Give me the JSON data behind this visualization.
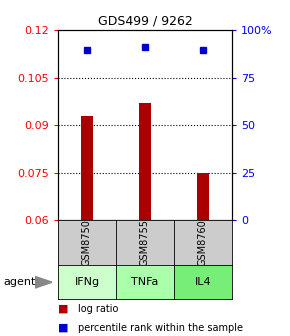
{
  "title": "GDS499 / 9262",
  "samples": [
    "GSM8750",
    "GSM8755",
    "GSM8760"
  ],
  "agents": [
    "IFNg",
    "TNFa",
    "IL4"
  ],
  "log_ratio_values": [
    0.093,
    0.097,
    0.075
  ],
  "percentile_values": [
    96,
    98,
    96
  ],
  "ylim_left": [
    0.06,
    0.12
  ],
  "ylim_right": [
    0,
    100
  ],
  "yticks_left": [
    0.06,
    0.075,
    0.09,
    0.105,
    0.12
  ],
  "yticks_right": [
    0,
    25,
    50,
    75,
    100
  ],
  "bar_color": "#aa0000",
  "dot_color": "#0000cc",
  "bar_base": 0.06,
  "agent_colors": [
    "#ccffcc",
    "#aaffaa",
    "#77ee77"
  ],
  "gsm_bg": "#cccccc",
  "grid_ticks": [
    0.075,
    0.09,
    0.105
  ],
  "legend_log_ratio_color": "#aa0000",
  "legend_percentile_color": "#0000cc",
  "percentile_mapped": [
    0.1136,
    0.1148,
    0.1136
  ]
}
